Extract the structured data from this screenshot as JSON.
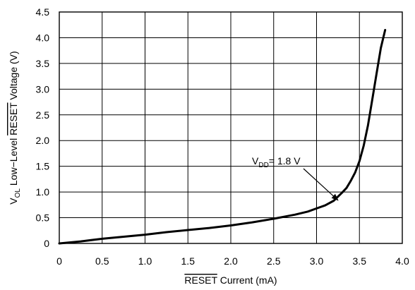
{
  "chart_data": {
    "type": "line",
    "title": "",
    "xlabel": {
      "parts": [
        "RESET",
        " Current (mA)"
      ],
      "overline": [
        true,
        false
      ]
    },
    "ylabel": {
      "parts": [
        "V",
        "OL",
        " Low−Level ",
        "RESET",
        " Voltage (V)"
      ],
      "sub": [
        false,
        true,
        false,
        false,
        false
      ],
      "overline": [
        false,
        false,
        false,
        true,
        false
      ]
    },
    "xlim": [
      0,
      4.0
    ],
    "ylim": [
      0,
      4.5
    ],
    "xticks": [
      "0",
      "0.5",
      "1.0",
      "1.5",
      "2.0",
      "2.5",
      "3.0",
      "3.5",
      "4.0"
    ],
    "yticks": [
      "0",
      "0.5",
      "1.0",
      "1.5",
      "2.0",
      "2.5",
      "3.0",
      "3.5",
      "4.0",
      "4.5"
    ],
    "xtick_values": [
      0,
      0.5,
      1.0,
      1.5,
      2.0,
      2.5,
      3.0,
      3.5,
      4.0
    ],
    "ytick_values": [
      0,
      0.5,
      1.0,
      1.5,
      2.0,
      2.5,
      3.0,
      3.5,
      4.0,
      4.5
    ],
    "grid": true,
    "series": [
      {
        "x": [
          0,
          0.25,
          0.5,
          0.75,
          1.0,
          1.25,
          1.5,
          1.75,
          2.0,
          2.25,
          2.5,
          2.75,
          2.9,
          3.0,
          3.1,
          3.2,
          3.3,
          3.35,
          3.4,
          3.45,
          3.5,
          3.55,
          3.6,
          3.65,
          3.7,
          3.75,
          3.8
        ],
        "y": [
          0,
          0.04,
          0.09,
          0.13,
          0.17,
          0.22,
          0.26,
          0.3,
          0.35,
          0.41,
          0.48,
          0.56,
          0.62,
          0.68,
          0.74,
          0.83,
          0.99,
          1.08,
          1.22,
          1.38,
          1.6,
          1.9,
          2.3,
          2.8,
          3.3,
          3.8,
          4.15
        ]
      }
    ],
    "annotation": {
      "parts": [
        "V",
        "DD",
        "= 1.8 V"
      ],
      "sub": [
        false,
        true,
        false
      ],
      "point_to": [
        3.25,
        0.84
      ]
    }
  }
}
